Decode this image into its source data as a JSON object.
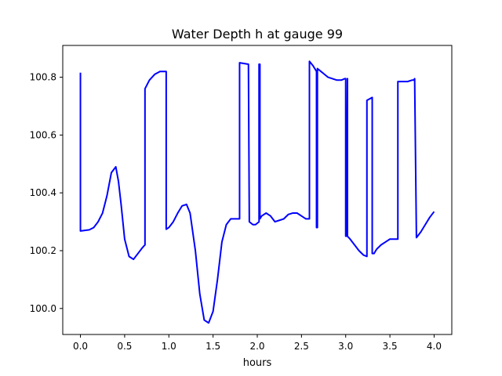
{
  "chart_data": {
    "type": "line",
    "title": "Water Depth h at gauge 99",
    "xlabel": "hours",
    "ylabel": "",
    "xlim": [
      -0.2,
      4.2
    ],
    "ylim": [
      99.91,
      100.91
    ],
    "xticks": [
      0.0,
      0.5,
      1.0,
      1.5,
      2.0,
      2.5,
      3.0,
      3.5,
      4.0
    ],
    "xtick_labels": [
      "0.0",
      "0.5",
      "1.0",
      "1.5",
      "2.0",
      "2.5",
      "3.0",
      "3.5",
      "4.0"
    ],
    "yticks": [
      100.0,
      100.2,
      100.4,
      100.6,
      100.8
    ],
    "ytick_labels": [
      "100.0",
      "100.2",
      "100.4",
      "100.6",
      "100.8"
    ],
    "grid": false,
    "series": [
      {
        "color": "#0000ff",
        "x": [
          0.0,
          0.0,
          0.05,
          0.1,
          0.15,
          0.2,
          0.25,
          0.3,
          0.35,
          0.4,
          0.43,
          0.46,
          0.5,
          0.55,
          0.6,
          0.65,
          0.7,
          0.73,
          0.73,
          0.78,
          0.84,
          0.9,
          0.97,
          0.97,
          0.97,
          1.0,
          1.05,
          1.1,
          1.15,
          1.2,
          1.24,
          1.3,
          1.35,
          1.4,
          1.45,
          1.5,
          1.55,
          1.6,
          1.65,
          1.7,
          1.75,
          1.8,
          1.8,
          1.9,
          1.91,
          1.95,
          1.98,
          2.02,
          2.02,
          2.03,
          2.03,
          2.05,
          2.1,
          2.15,
          2.2,
          2.25,
          2.3,
          2.35,
          2.4,
          2.45,
          2.5,
          2.55,
          2.59,
          2.59,
          2.63,
          2.67,
          2.67,
          2.68,
          2.68,
          2.72,
          2.76,
          2.8,
          2.85,
          2.9,
          2.95,
          2.99,
          3.0,
          3.0,
          3.01,
          3.02,
          3.02,
          3.05,
          3.1,
          3.15,
          3.2,
          3.24,
          3.24,
          3.3,
          3.3,
          3.32,
          3.35,
          3.4,
          3.45,
          3.5,
          3.55,
          3.59,
          3.59,
          3.62,
          3.66,
          3.7,
          3.75,
          3.77,
          3.78,
          3.8,
          3.85,
          3.9,
          3.95,
          4.0
        ],
        "values": [
          100.816,
          100.268,
          100.27,
          100.272,
          100.28,
          100.3,
          100.33,
          100.39,
          100.47,
          100.49,
          100.44,
          100.36,
          100.24,
          100.18,
          100.17,
          100.19,
          100.21,
          100.22,
          100.76,
          100.79,
          100.81,
          100.82,
          100.82,
          100.82,
          100.274,
          100.28,
          100.3,
          100.33,
          100.355,
          100.36,
          100.33,
          100.2,
          100.05,
          99.96,
          99.95,
          99.99,
          100.1,
          100.23,
          100.29,
          100.31,
          100.31,
          100.31,
          100.85,
          100.845,
          100.3,
          100.29,
          100.29,
          100.3,
          100.845,
          100.845,
          100.31,
          100.32,
          100.33,
          100.32,
          100.3,
          100.305,
          100.31,
          100.325,
          100.33,
          100.33,
          100.32,
          100.31,
          100.31,
          100.855,
          100.84,
          100.82,
          100.28,
          100.28,
          100.83,
          100.82,
          100.81,
          100.8,
          100.795,
          100.79,
          100.79,
          100.795,
          100.795,
          100.25,
          100.25,
          100.795,
          100.25,
          100.24,
          100.22,
          100.2,
          100.185,
          100.18,
          100.72,
          100.73,
          100.19,
          100.19,
          100.205,
          100.22,
          100.23,
          100.24,
          100.24,
          100.24,
          100.785,
          100.785,
          100.785,
          100.785,
          100.79,
          100.79,
          100.795,
          100.245,
          100.265,
          100.29,
          100.315,
          100.335
        ]
      }
    ]
  }
}
